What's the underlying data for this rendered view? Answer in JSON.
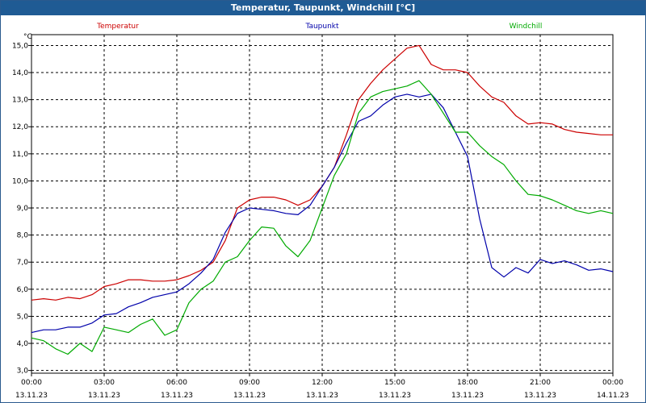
{
  "window": {
    "title": "Temperatur, Taupunkt, Windchill [°C]"
  },
  "chart_data": {
    "type": "line",
    "title": "Temperatur, Taupunkt, Windchill [°C]",
    "ylabel": "°C",
    "ylim": [
      2.9,
      15.4
    ],
    "xlim": [
      0,
      24
    ],
    "yticks": [
      "3,0",
      "4,0",
      "5,0",
      "6,0",
      "7,0",
      "8,0",
      "9,0",
      "10,0",
      "11,0",
      "12,0",
      "13,0",
      "14,0",
      "15,0"
    ],
    "xticks": [
      {
        "time": "00:00",
        "date": "13.11.23"
      },
      {
        "time": "03:00",
        "date": "13.11.23"
      },
      {
        "time": "06:00",
        "date": "13.11.23"
      },
      {
        "time": "09:00",
        "date": "13.11.23"
      },
      {
        "time": "12:00",
        "date": "13.11.23"
      },
      {
        "time": "15:00",
        "date": "13.11.23"
      },
      {
        "time": "18:00",
        "date": "13.11.23"
      },
      {
        "time": "21:00",
        "date": "13.11.23"
      },
      {
        "time": "00:00",
        "date": "14.11.23"
      }
    ],
    "grid": true,
    "series": [
      {
        "name": "Temperatur",
        "color": "#cc0000",
        "x": [
          0,
          0.5,
          1,
          1.5,
          2,
          2.5,
          3,
          3.5,
          4,
          4.5,
          5,
          5.5,
          6,
          6.5,
          7,
          7.5,
          8,
          8.5,
          9,
          9.5,
          10,
          10.5,
          11,
          11.5,
          12,
          12.5,
          13,
          13.5,
          14,
          14.5,
          15,
          15.5,
          16,
          16.5,
          17,
          17.5,
          18,
          18.5,
          19,
          19.5,
          20,
          20.5,
          21,
          21.5,
          22,
          22.5,
          23,
          23.5,
          24
        ],
        "values": [
          5.6,
          5.65,
          5.6,
          5.7,
          5.65,
          5.8,
          6.1,
          6.2,
          6.35,
          6.35,
          6.3,
          6.3,
          6.35,
          6.5,
          6.7,
          7.0,
          7.8,
          9.0,
          9.3,
          9.4,
          9.4,
          9.3,
          9.1,
          9.3,
          9.8,
          10.5,
          11.7,
          13.0,
          13.6,
          14.1,
          14.5,
          14.9,
          15.0,
          14.3,
          14.1,
          14.1,
          14.0,
          13.5,
          13.1,
          12.9,
          12.4,
          12.1,
          12.15,
          12.1,
          11.9,
          11.8,
          11.75,
          11.7,
          11.7
        ]
      },
      {
        "name": "Taupunkt",
        "color": "#0000aa",
        "x": [
          0,
          0.5,
          1,
          1.5,
          2,
          2.5,
          3,
          3.5,
          4,
          4.5,
          5,
          5.5,
          6,
          6.5,
          7,
          7.5,
          8,
          8.5,
          9,
          9.5,
          10,
          10.5,
          11,
          11.5,
          12,
          12.5,
          13,
          13.5,
          14,
          14.5,
          15,
          15.5,
          16,
          16.5,
          17,
          17.5,
          18,
          18.5,
          19,
          19.5,
          20,
          20.5,
          21,
          21.5,
          22,
          22.5,
          23,
          23.5,
          24
        ],
        "values": [
          4.4,
          4.5,
          4.5,
          4.6,
          4.6,
          4.75,
          5.05,
          5.1,
          5.35,
          5.5,
          5.7,
          5.8,
          5.9,
          6.2,
          6.6,
          7.1,
          8.1,
          8.8,
          9.0,
          8.95,
          8.9,
          8.8,
          8.75,
          9.1,
          9.8,
          10.5,
          11.4,
          12.2,
          12.4,
          12.8,
          13.1,
          13.2,
          13.1,
          13.2,
          12.7,
          11.8,
          10.9,
          8.6,
          6.8,
          6.45,
          6.8,
          6.6,
          7.1,
          6.95,
          7.05,
          6.9,
          6.7,
          6.75,
          6.65
        ]
      },
      {
        "name": "Windchill",
        "color": "#00aa00",
        "x": [
          0,
          0.5,
          1,
          1.5,
          2,
          2.5,
          3,
          3.5,
          4,
          4.5,
          5,
          5.5,
          6,
          6.5,
          7,
          7.5,
          8,
          8.5,
          9,
          9.5,
          10,
          10.5,
          11,
          11.5,
          12,
          12.5,
          13,
          13.5,
          14,
          14.5,
          15,
          15.5,
          16,
          16.5,
          17,
          17.5,
          18,
          18.5,
          19,
          19.5,
          20,
          20.5,
          21,
          21.5,
          22,
          22.5,
          23,
          23.5,
          24
        ],
        "values": [
          4.2,
          4.1,
          3.8,
          3.6,
          4.0,
          3.7,
          4.6,
          4.5,
          4.4,
          4.7,
          4.9,
          4.3,
          4.5,
          5.5,
          6.0,
          6.3,
          7.0,
          7.2,
          7.8,
          8.3,
          8.25,
          7.6,
          7.2,
          7.8,
          9.0,
          10.2,
          11.0,
          12.5,
          13.1,
          13.3,
          13.4,
          13.5,
          13.7,
          13.2,
          12.5,
          11.8,
          11.8,
          11.3,
          10.9,
          10.6,
          10.0,
          9.5,
          9.45,
          9.3,
          9.1,
          8.9,
          8.8,
          8.9,
          8.8
        ]
      }
    ]
  }
}
